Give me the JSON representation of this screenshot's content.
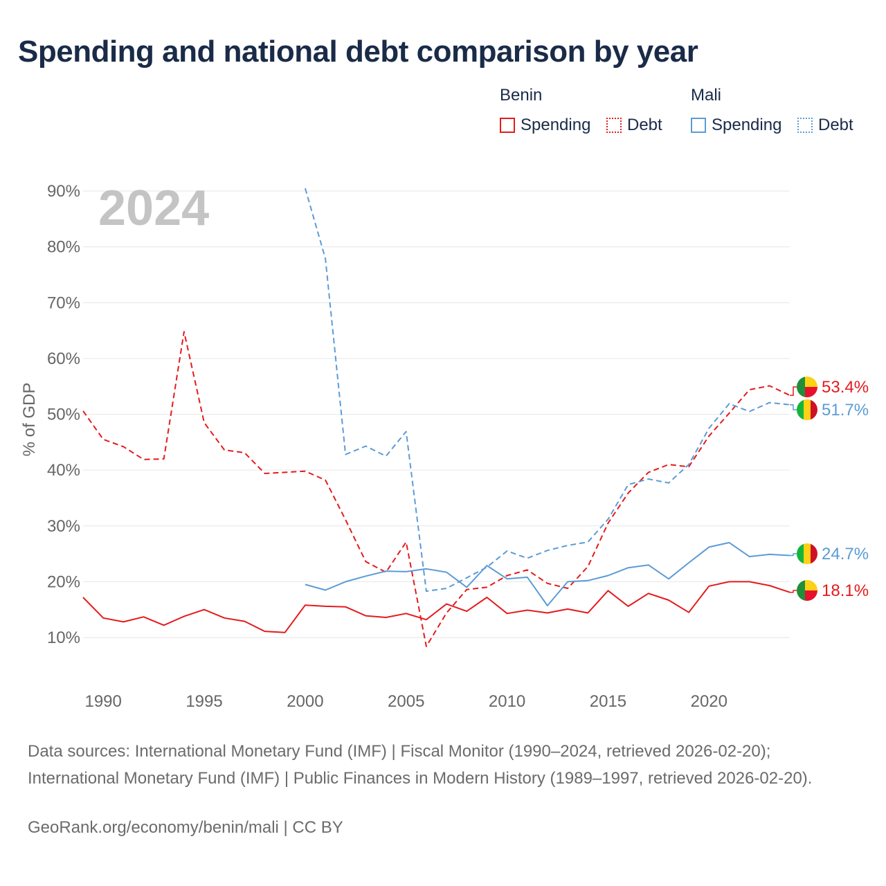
{
  "title": "Spending and national debt comparison by year",
  "legend": {
    "groups": [
      {
        "country": "Benin",
        "color": "#e41a1c",
        "items": [
          {
            "label": "Spending",
            "style": "solid"
          },
          {
            "label": "Debt",
            "style": "dotted"
          }
        ]
      },
      {
        "country": "Mali",
        "color": "#5b9bd5",
        "items": [
          {
            "label": "Spending",
            "style": "solid"
          },
          {
            "label": "Debt",
            "style": "dotted"
          }
        ]
      }
    ]
  },
  "chart_data": {
    "type": "line",
    "ylabel": "% of GDP",
    "ylim": [
      0,
      90
    ],
    "xlim": [
      1989,
      2024
    ],
    "y_ticks": [
      "10%",
      "20%",
      "30%",
      "40%",
      "50%",
      "60%",
      "70%",
      "80%",
      "90%"
    ],
    "x_ticks": [
      "1990",
      "1995",
      "2000",
      "2005",
      "2010",
      "2015",
      "2020"
    ],
    "year_watermark": "2024",
    "series": [
      {
        "name": "Benin Spending",
        "color": "#e41a1c",
        "dash": "solid",
        "end_label": "18.1%",
        "x": [
          1989,
          1990,
          1991,
          1992,
          1993,
          1994,
          1995,
          1996,
          1997,
          1998,
          1999,
          2000,
          2001,
          2002,
          2003,
          2004,
          2005,
          2006,
          2007,
          2008,
          2009,
          2010,
          2011,
          2012,
          2013,
          2014,
          2015,
          2016,
          2017,
          2018,
          2019,
          2020,
          2021,
          2022,
          2023,
          2024
        ],
        "values": [
          17.2,
          13.5,
          12.8,
          13.7,
          12.2,
          13.8,
          15.0,
          13.5,
          12.9,
          11.1,
          10.9,
          15.8,
          15.6,
          15.5,
          13.9,
          13.6,
          14.3,
          13.2,
          16.0,
          14.7,
          17.2,
          14.3,
          14.9,
          14.4,
          15.1,
          14.4,
          18.4,
          15.6,
          17.9,
          16.7,
          14.5,
          19.2,
          20.0,
          20.0,
          19.3,
          18.1
        ]
      },
      {
        "name": "Benin Debt",
        "color": "#e41a1c",
        "dash": "dashed",
        "end_label": "53.4%",
        "x": [
          1989,
          1990,
          1991,
          1992,
          1993,
          1994,
          1995,
          1996,
          1997,
          1998,
          1999,
          2000,
          2001,
          2002,
          2003,
          2004,
          2005,
          2006,
          2007,
          2008,
          2009,
          2010,
          2011,
          2012,
          2013,
          2014,
          2015,
          2016,
          2017,
          2018,
          2019,
          2020,
          2021,
          2022,
          2023,
          2024
        ],
        "values": [
          50.6,
          45.5,
          44.2,
          41.9,
          42.0,
          64.8,
          48.5,
          43.6,
          43.1,
          39.4,
          39.6,
          39.8,
          38.2,
          31.1,
          23.6,
          21.7,
          27.1,
          8.4,
          14.4,
          18.6,
          19.0,
          21.1,
          22.1,
          19.7,
          18.8,
          22.7,
          30.5,
          35.9,
          39.6,
          41.0,
          40.6,
          46.1,
          50.2,
          54.4,
          55.1,
          53.4
        ]
      },
      {
        "name": "Mali Spending",
        "color": "#5b9bd5",
        "dash": "solid",
        "end_label": "24.7%",
        "x": [
          2000,
          2001,
          2002,
          2003,
          2004,
          2005,
          2006,
          2007,
          2008,
          2009,
          2010,
          2011,
          2012,
          2013,
          2014,
          2015,
          2016,
          2017,
          2018,
          2019,
          2020,
          2021,
          2022,
          2023,
          2024
        ],
        "values": [
          19.5,
          18.5,
          20.0,
          21.0,
          21.9,
          21.8,
          22.3,
          21.7,
          19.0,
          22.9,
          20.5,
          20.8,
          15.7,
          20.0,
          20.2,
          21.1,
          22.5,
          23.0,
          20.5,
          23.4,
          26.2,
          27.0,
          24.5,
          24.9,
          24.7
        ]
      },
      {
        "name": "Mali Debt",
        "color": "#5b9bd5",
        "dash": "dashed",
        "end_label": "51.7%",
        "x": [
          2000,
          2001,
          2002,
          2003,
          2004,
          2005,
          2006,
          2007,
          2008,
          2009,
          2010,
          2011,
          2012,
          2013,
          2014,
          2015,
          2016,
          2017,
          2018,
          2019,
          2020,
          2021,
          2022,
          2023,
          2024
        ],
        "values": [
          90.5,
          77.9,
          42.8,
          44.3,
          42.5,
          46.9,
          18.3,
          18.8,
          20.7,
          22.6,
          25.5,
          24.2,
          25.6,
          26.5,
          27.1,
          31.2,
          37.4,
          38.4,
          37.7,
          41.0,
          47.5,
          51.9,
          50.5,
          52.1,
          51.7
        ]
      }
    ]
  },
  "source": "Data sources: International Monetary Fund (IMF) | Fiscal Monitor (1990–2024, retrieved 2026-02-20); International Monetary Fund (IMF) | Public Finances in Modern History (1989–1997, retrieved 2026-02-20).",
  "credit": "GeoRank.org/economy/benin/mali | CC BY",
  "flags": {
    "benin_green": "#1f8f3a",
    "benin_yellow": "#fcd116",
    "benin_red": "#e8112d",
    "mali_green": "#14b53a",
    "mali_yellow": "#fcd116",
    "mali_red": "#ce1126"
  }
}
